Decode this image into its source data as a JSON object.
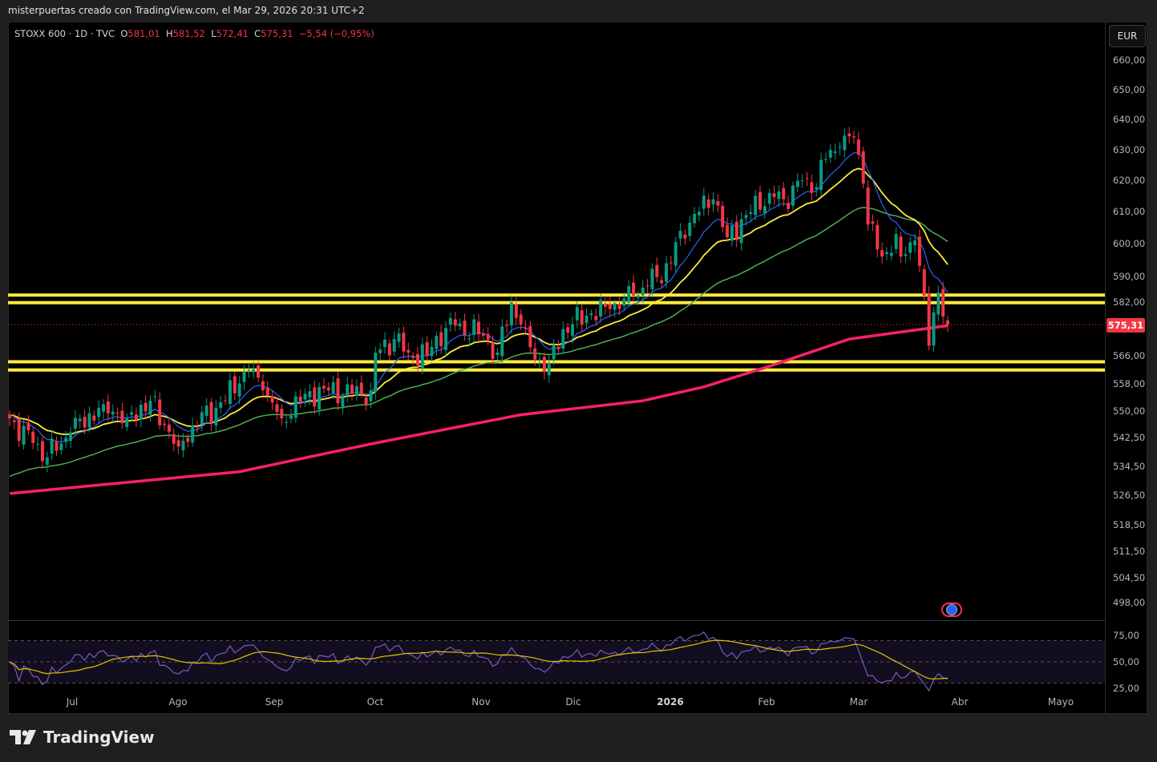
{
  "header": {
    "caption": "misterpuertas creado con TradingView.com, el Mar 29, 2026 20:31 UTC+2"
  },
  "legend": {
    "symbol": "STOXX 600 · 1D · TVC",
    "open_label": "O",
    "open": "581,01",
    "high_label": "H",
    "high": "581,52",
    "low_label": "L",
    "low": "572,41",
    "close_label": "C",
    "close": "575,31",
    "change": "−5,54 (−0,95%)"
  },
  "currency_button": "EUR",
  "current_price_label": "575,31",
  "price_ticks": [
    {
      "label": "660,00",
      "value": 660
    },
    {
      "label": "650,00",
      "value": 650
    },
    {
      "label": "640,00",
      "value": 640
    },
    {
      "label": "630,00",
      "value": 630
    },
    {
      "label": "620,00",
      "value": 620
    },
    {
      "label": "610,00",
      "value": 610
    },
    {
      "label": "600,00",
      "value": 600
    },
    {
      "label": "590,00",
      "value": 590
    },
    {
      "label": "582,00",
      "value": 582
    },
    {
      "label": "566,00",
      "value": 566
    },
    {
      "label": "558,00",
      "value": 558
    },
    {
      "label": "550,00",
      "value": 550
    },
    {
      "label": "542,50",
      "value": 542.5
    },
    {
      "label": "534,50",
      "value": 534.5
    },
    {
      "label": "526,50",
      "value": 526.5
    },
    {
      "label": "518,50",
      "value": 518.5
    },
    {
      "label": "511,50",
      "value": 511.5
    },
    {
      "label": "504,50",
      "value": 504.5
    },
    {
      "label": "498,00",
      "value": 498
    }
  ],
  "rsi_ticks": [
    {
      "label": "75,00",
      "value": 75
    },
    {
      "label": "50,00",
      "value": 50
    },
    {
      "label": "25,00",
      "value": 25
    }
  ],
  "time_labels": [
    "Jul",
    "Ago",
    "Sep",
    "Oct",
    "Nov",
    "Dic",
    "2026",
    "Feb",
    "Mar",
    "Abr",
    "Mayo"
  ],
  "brand": "TradingView",
  "colors": {
    "up": "#089981",
    "down": "#f23645",
    "ema_fast": "#2962ff",
    "ema_mid": "#ffeb3b",
    "ema_slow": "#4caf50",
    "ma200": "#ff1e6e",
    "support": "#ffeb3b",
    "rsi": "#7e57c2",
    "rsi_ma": "#e6c300"
  },
  "chart_data": {
    "type": "candlestick",
    "scale": "log",
    "ylim": [
      498,
      660
    ],
    "bars": 201,
    "last_close": 575.31,
    "close_anchors": [
      [
        0,
        548
      ],
      [
        5,
        541
      ],
      [
        8,
        537
      ],
      [
        13,
        544
      ],
      [
        20,
        552
      ],
      [
        25,
        548
      ],
      [
        30,
        553
      ],
      [
        36,
        540
      ],
      [
        39,
        546
      ],
      [
        44,
        551
      ],
      [
        49,
        558
      ],
      [
        51,
        562
      ],
      [
        54,
        556
      ],
      [
        58,
        548
      ],
      [
        63,
        555
      ],
      [
        68,
        556
      ],
      [
        73,
        555
      ],
      [
        77,
        556
      ],
      [
        78,
        567
      ],
      [
        82,
        571
      ],
      [
        85,
        567
      ],
      [
        89,
        566
      ],
      [
        91,
        572
      ],
      [
        95,
        575
      ],
      [
        101,
        572
      ],
      [
        104,
        567
      ],
      [
        107,
        582
      ],
      [
        110,
        574
      ],
      [
        112,
        565
      ],
      [
        115,
        564
      ],
      [
        118,
        574
      ],
      [
        123,
        578
      ],
      [
        128,
        580
      ],
      [
        133,
        584
      ],
      [
        136,
        587
      ],
      [
        141,
        594
      ],
      [
        143,
        604
      ],
      [
        147,
        610
      ],
      [
        150,
        614
      ],
      [
        153,
        602
      ],
      [
        157,
        609
      ],
      [
        162,
        616
      ],
      [
        165,
        614
      ],
      [
        169,
        620
      ],
      [
        171,
        616
      ],
      [
        174,
        627
      ],
      [
        177,
        631
      ],
      [
        180,
        634
      ],
      [
        182,
        619
      ],
      [
        183,
        606
      ],
      [
        186,
        596
      ],
      [
        189,
        603
      ],
      [
        190,
        596
      ],
      [
        193,
        601
      ],
      [
        195,
        584
      ],
      [
        196,
        569
      ],
      [
        197,
        579
      ],
      [
        198,
        585
      ],
      [
        200,
        575.31
      ]
    ],
    "ma200_anchors": [
      [
        0,
        527
      ],
      [
        49,
        533
      ],
      [
        78,
        541
      ],
      [
        109,
        549
      ],
      [
        135,
        553
      ],
      [
        148,
        557
      ],
      [
        162,
        563
      ],
      [
        179,
        571
      ],
      [
        200,
        575
      ]
    ],
    "support_levels": [
      584.2,
      581.9,
      564.3,
      561.9
    ],
    "indicators": [
      "EMA 10",
      "EMA 20",
      "EMA 50",
      "MA 200",
      "RSI 14"
    ],
    "rsi_levels": [
      70,
      50,
      30
    ]
  }
}
